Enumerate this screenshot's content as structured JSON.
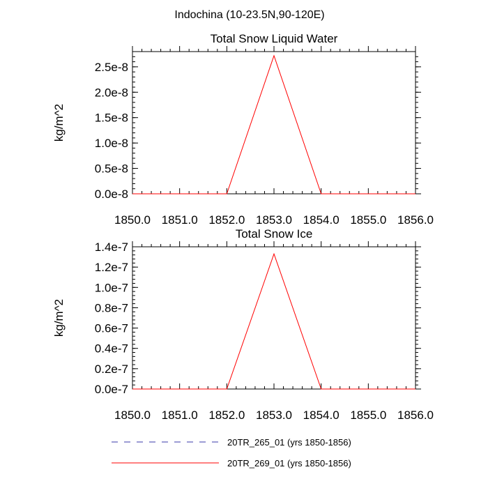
{
  "figure": {
    "suptitle": "Indochina (10-23.5N,90-120E)"
  },
  "legend": [
    {
      "label": "20TR_265_01 (yrs 1850-1856)",
      "color": "#3a3aa8",
      "dash": "dashed"
    },
    {
      "label": "20TR_269_01 (yrs 1850-1856)",
      "color": "#ff0000",
      "dash": "solid"
    }
  ],
  "chart_data": [
    {
      "type": "line",
      "title": "Total Snow Liquid Water",
      "ylabel": "kg/m^2",
      "xlabel": "",
      "xlim": [
        1850,
        1856
      ],
      "ylim": [
        0,
        2.8e-08
      ],
      "xticks": [
        1850,
        1851,
        1852,
        1853,
        1854,
        1855,
        1856
      ],
      "xtick_labels": [
        "1850.0",
        "1851.0",
        "1852.0",
        "1853.0",
        "1854.0",
        "1855.0",
        "1856.0"
      ],
      "yticks": [
        0,
        5e-09,
        1e-08,
        1.5e-08,
        2e-08,
        2.5e-08
      ],
      "ytick_labels": [
        "0.0e-8",
        "0.5e-8",
        "1.0e-8",
        "1.5e-8",
        "2.0e-8",
        "2.5e-8"
      ],
      "grid": false,
      "series": [
        {
          "name": "20TR_269_01 (yrs 1850-1856)",
          "color": "#ff0000",
          "x": [
            1850,
            1851,
            1852,
            1853,
            1854,
            1855,
            1856
          ],
          "y": [
            0,
            0,
            0,
            2.72e-08,
            0,
            0,
            0
          ]
        }
      ]
    },
    {
      "type": "line",
      "title": "Total Snow Ice",
      "ylabel": "kg/m^2",
      "xlabel": "",
      "xlim": [
        1850,
        1856
      ],
      "ylim": [
        0,
        1.4e-07
      ],
      "xticks": [
        1850,
        1851,
        1852,
        1853,
        1854,
        1855,
        1856
      ],
      "xtick_labels": [
        "1850.0",
        "1851.0",
        "1852.0",
        "1853.0",
        "1854.0",
        "1855.0",
        "1856.0"
      ],
      "yticks": [
        0,
        2e-08,
        4e-08,
        6e-08,
        8e-08,
        1e-07,
        1.2e-07,
        1.4e-07
      ],
      "ytick_labels": [
        "0.0e-7",
        "0.2e-7",
        "0.4e-7",
        "0.6e-7",
        "0.8e-7",
        "1.0e-7",
        "1.2e-7",
        "1.4e-7"
      ],
      "grid": false,
      "series": [
        {
          "name": "20TR_269_01 (yrs 1850-1856)",
          "color": "#ff0000",
          "x": [
            1850,
            1851,
            1852,
            1853,
            1854,
            1855,
            1856
          ],
          "y": [
            0,
            0,
            0,
            1.33e-07,
            0,
            0,
            0
          ]
        }
      ]
    }
  ]
}
